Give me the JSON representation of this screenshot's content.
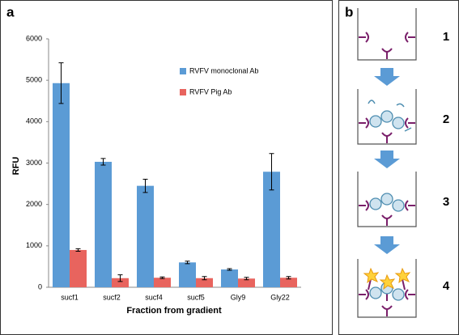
{
  "chart_data": {
    "type": "bar",
    "ylabel": "RFU",
    "xlabel": "Fraction from  gradient",
    "categories": [
      "sucf1",
      "sucf2",
      "sucf4",
      "sucf5",
      "Gly9",
      "Gly22"
    ],
    "series": [
      {
        "name": "RVFV monoclonal Ab",
        "color": "#5b9bd5",
        "values": [
          4930,
          3030,
          2450,
          600,
          430,
          2790
        ],
        "errors": [
          490,
          80,
          160,
          30,
          20,
          440
        ]
      },
      {
        "name": "RVFV Pig Ab",
        "color": "#e8645e",
        "values": [
          900,
          220,
          230,
          220,
          210,
          230
        ],
        "errors": [
          30,
          80,
          20,
          40,
          30,
          30
        ]
      }
    ],
    "ylim": [
      0,
      6000
    ],
    "yticks": [
      0,
      1000,
      2000,
      3000,
      4000,
      5000,
      6000
    ],
    "grid": false
  },
  "panel_labels": [
    "a",
    "b"
  ],
  "diagram": {
    "steps": [
      "1",
      "2",
      "3",
      "4"
    ]
  }
}
